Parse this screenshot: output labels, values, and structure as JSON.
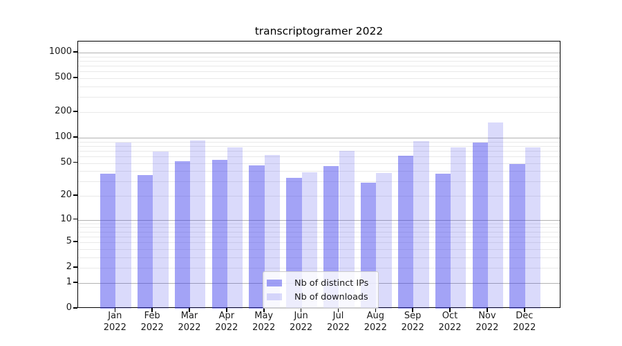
{
  "chart_data": {
    "type": "bar",
    "title": "transcriptogramer 2022",
    "categories": [
      "Jan 2022",
      "Feb 2022",
      "Mar 2022",
      "Apr 2022",
      "May 2022",
      "Jun 2022",
      "Jul 2022",
      "Aug 2022",
      "Sep 2022",
      "Oct 2022",
      "Nov 2022",
      "Dec 2022"
    ],
    "series": [
      {
        "name": "Nb of distinct IPs",
        "color": "#3232eb",
        "fill": "rgba(50,50,235,0.45)",
        "values": [
          37,
          36,
          52,
          54,
          47,
          33,
          46,
          29,
          61,
          37,
          87,
          49
        ]
      },
      {
        "name": "Nb of downloads",
        "color": "#3232eb",
        "fill": "rgba(50,50,235,0.18)",
        "values": [
          87,
          68,
          93,
          76,
          62,
          39,
          70,
          38,
          91,
          76,
          151,
          77
        ]
      }
    ],
    "y_axis": {
      "scale": "symlog",
      "ticks": [
        0,
        1,
        2,
        5,
        10,
        20,
        50,
        100,
        200,
        500,
        1000
      ],
      "ylim": [
        0,
        1350
      ]
    },
    "x_axis": {
      "label_line2": "2022"
    },
    "legend_position": "lower center",
    "grid": {
      "enabled": true,
      "major_color": "#b2b2b2",
      "minor_color": "#e9e9e9"
    }
  }
}
